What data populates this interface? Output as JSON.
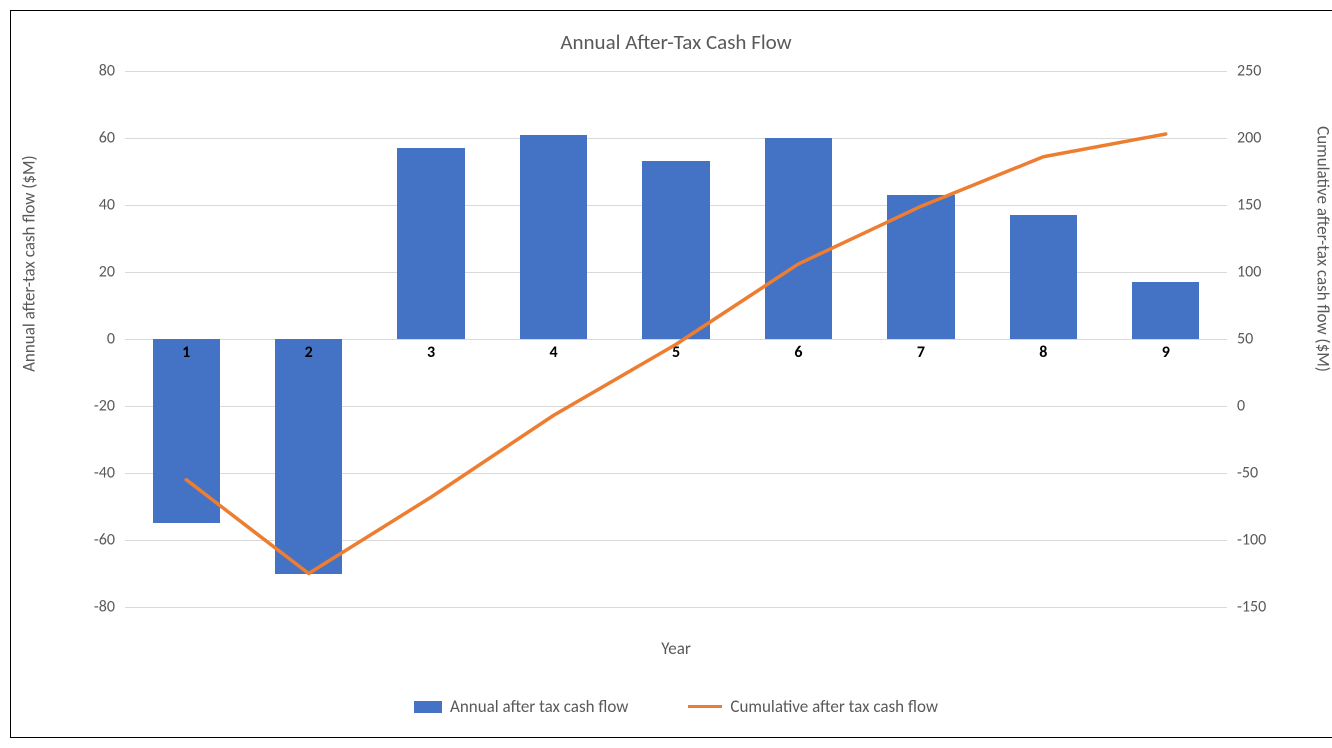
{
  "chart": {
    "type": "combo-bar-line",
    "title": "Annual After-Tax Cash Flow",
    "title_fontsize": 21,
    "title_color": "#595959",
    "background_color": "#ffffff",
    "border_color": "#000000",
    "grid_color": "#d9d9d9",
    "font_family": "Calibri",
    "categories": [
      "1",
      "2",
      "3",
      "4",
      "5",
      "6",
      "7",
      "8",
      "9"
    ],
    "category_label_fontsize": 16,
    "category_label_fontweight": 700,
    "category_label_color": "#000000",
    "bars": {
      "label": "Annual after tax cash flow",
      "color": "#4472c4",
      "values": [
        -55,
        -70,
        57,
        61,
        53,
        60,
        43,
        37,
        17
      ],
      "bar_width_fraction": 0.55,
      "axis": "left"
    },
    "line": {
      "label": "Cumulative after tax cash flow",
      "color": "#ed7d31",
      "width": 3.5,
      "values": [
        -55,
        -125,
        -68,
        -7,
        46,
        106,
        149,
        186,
        203
      ],
      "axis": "right"
    },
    "x_axis": {
      "label": "Year",
      "label_fontsize": 17,
      "label_color": "#595959"
    },
    "y_axis_left": {
      "label": "Annual after-tax cash flow ($M)",
      "label_fontsize": 17,
      "label_color": "#595959",
      "min": -80,
      "max": 80,
      "tick_step": 20,
      "tick_fontsize": 16,
      "tick_color": "#595959"
    },
    "y_axis_right": {
      "label": "Cumulative after-tax cash flow ($M)",
      "label_fontsize": 17,
      "label_color": "#595959",
      "min": -150,
      "max": 250,
      "tick_step": 50,
      "tick_fontsize": 16,
      "tick_color": "#595959"
    },
    "legend": {
      "position": "bottom",
      "fontsize": 17,
      "color": "#595959"
    }
  }
}
